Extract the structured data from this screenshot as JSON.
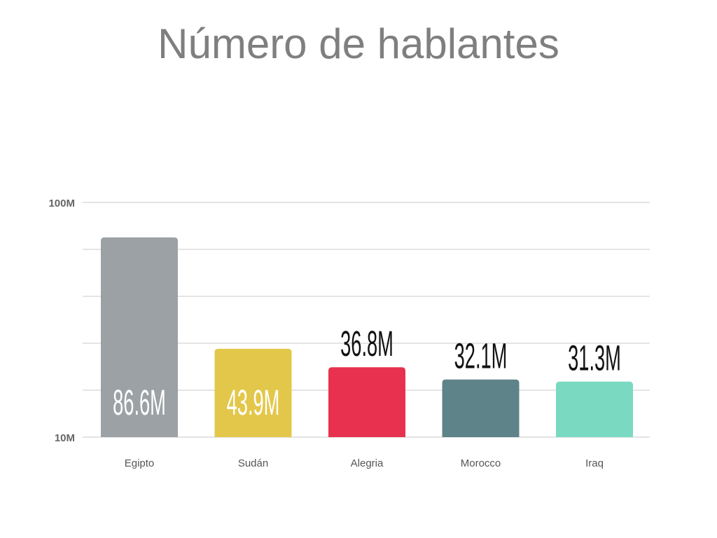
{
  "chart_data": {
    "type": "bar",
    "title": "Número de hablantes",
    "categories": [
      "Egipto",
      "Sudán",
      "Alegria",
      "Morocco",
      "Iraq"
    ],
    "values": [
      86.6,
      43.9,
      36.8,
      32.1,
      31.3
    ],
    "data_labels": [
      "86.6M",
      "43.9M",
      "36.8M",
      "32.1M",
      "31.3M"
    ],
    "colors": [
      "#9ca1a5",
      "#e3c74a",
      "#e8314e",
      "#5e8388",
      "#7ad9c1"
    ],
    "ylim": [
      10,
      100
    ],
    "ytick_labels": [
      {
        "value": 100,
        "label": "100M"
      },
      {
        "value": 10,
        "label": "10M"
      }
    ],
    "gridlines": [
      10,
      28,
      46,
      64,
      82,
      100
    ],
    "grid": true,
    "xlabel": "",
    "ylabel": ""
  }
}
